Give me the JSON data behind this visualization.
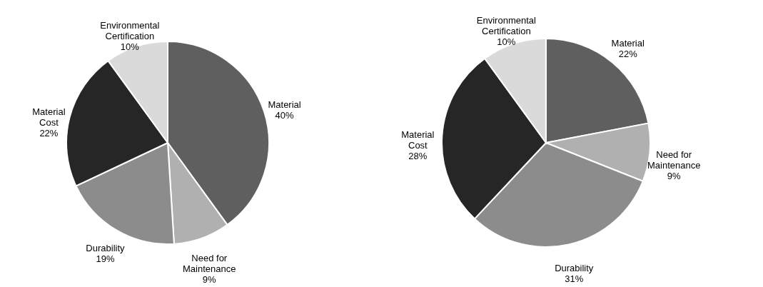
{
  "chart_data": [
    {
      "type": "pie",
      "categories": [
        "Material",
        "Need for Maintenance",
        "Durability",
        "Material Cost",
        "Environmental Certification"
      ],
      "values": [
        40,
        9,
        19,
        22,
        10
      ],
      "colors": [
        "#5f5f5f",
        "#b0b0b0",
        "#8c8c8c",
        "#262626",
        "#dadada"
      ],
      "value_labels": [
        "40%",
        "9%",
        "19%",
        "22%",
        "10%"
      ],
      "legend": false
    },
    {
      "type": "pie",
      "categories": [
        "Material",
        "Need for Maintenance",
        "Durability",
        "Material Cost",
        "Environmental Certification"
      ],
      "values": [
        22,
        9,
        31,
        28,
        10
      ],
      "colors": [
        "#5f5f5f",
        "#b0b0b0",
        "#8c8c8c",
        "#262626",
        "#dadada"
      ],
      "value_labels": [
        "22%",
        "9%",
        "31%",
        "28%",
        "10%"
      ],
      "legend": false
    }
  ]
}
